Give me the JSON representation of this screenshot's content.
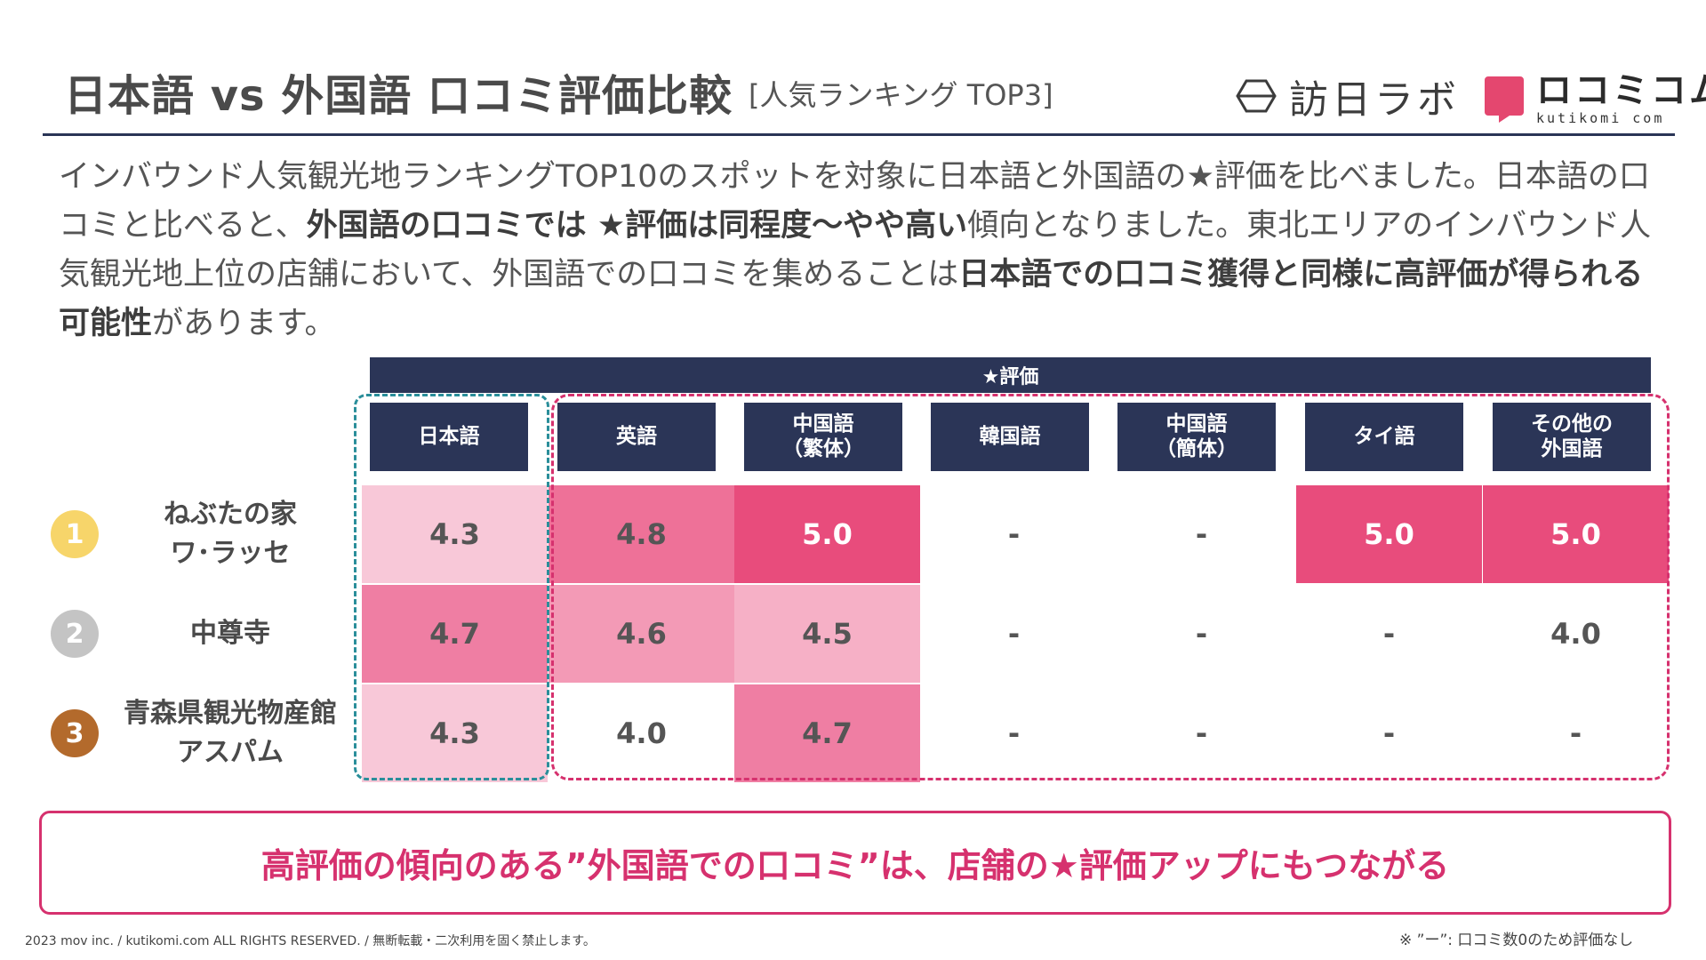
{
  "header": {
    "title": "日本語 vs 外国語 口コミ評価比較",
    "subtitle": "[人気ランキング TOP3]",
    "logo_lab": "訪日ラボ",
    "logo_kutikomi_main": "ロコミコム",
    "logo_kutikomi_sub": "kutikomi com"
  },
  "description": {
    "p1": "インバウンド人気観光地ランキングTOP10のスポットを対象に日本語と外国語の★評価を比べました。日本語の口コミと比べると、",
    "b1": "外国語の口コミでは ★評価は同程度〜やや高い",
    "p2": "傾向となりました。東北エリアのインバウンド人気観光地上位の店舗において、外国語での口コミを集めることは",
    "b2": "日本語での口コミ獲得と同様に高評価が得られる可能性",
    "p3": "があります。"
  },
  "table": {
    "star_header": "★評価",
    "columns": [
      "日本語",
      "英語",
      "中国語\n（繁体）",
      "韓国語",
      "中国語\n（簡体）",
      "タイ語",
      "その他の\n外国語"
    ],
    "rows": [
      {
        "rank": "1",
        "rank_color": "#f7d56a",
        "name_line1": "ねぶたの家",
        "name_line2": "ワ･ラッセ",
        "values": [
          "4.3",
          "4.8",
          "5.0",
          "-",
          "-",
          "5.0",
          "5.0"
        ],
        "colors": [
          "#f8c8d8",
          "#ee7198",
          "#e84c7c",
          "#ffffff",
          "#ffffff",
          "#e84c7c",
          "#e84c7c"
        ],
        "white_text": [
          false,
          false,
          true,
          false,
          false,
          true,
          true
        ]
      },
      {
        "rank": "2",
        "rank_color": "#c4c4c4",
        "name_line1": "中尊寺",
        "name_line2": "",
        "values": [
          "4.7",
          "4.6",
          "4.5",
          "-",
          "-",
          "-",
          "4.0"
        ],
        "colors": [
          "#ef7ea3",
          "#f39ab6",
          "#f6b0c6",
          "#ffffff",
          "#ffffff",
          "#ffffff",
          "#ffffff"
        ],
        "white_text": [
          false,
          false,
          false,
          false,
          false,
          false,
          false
        ]
      },
      {
        "rank": "3",
        "rank_color": "#b36a2c",
        "name_line1": "青森県観光物産館",
        "name_line2": "アスパム",
        "values": [
          "4.3",
          "4.0",
          "4.7",
          "-",
          "-",
          "-",
          "-"
        ],
        "colors": [
          "#f8c8d8",
          "#ffffff",
          "#ef7ea3",
          "#ffffff",
          "#ffffff",
          "#ffffff",
          "#ffffff"
        ],
        "white_text": [
          false,
          false,
          false,
          false,
          false,
          false,
          false
        ]
      }
    ]
  },
  "callout": "高評価の傾向のある”外国語での口コミ”は、店舗の★評価アップにもつながる",
  "footer": {
    "copyright": "2023 mov inc. / kutikomi.com ALL RIGHTS RESERVED. / 無断転載・二次利用を固く禁止します。",
    "note": "※ ”ー”: 口コミ数0のため評価なし"
  },
  "colors": {
    "navy": "#2b3557",
    "pink": "#d6316e",
    "teal": "#2a8e9a"
  },
  "icons": [
    "lab-logo-icon",
    "kutikomi-logo-icon"
  ]
}
